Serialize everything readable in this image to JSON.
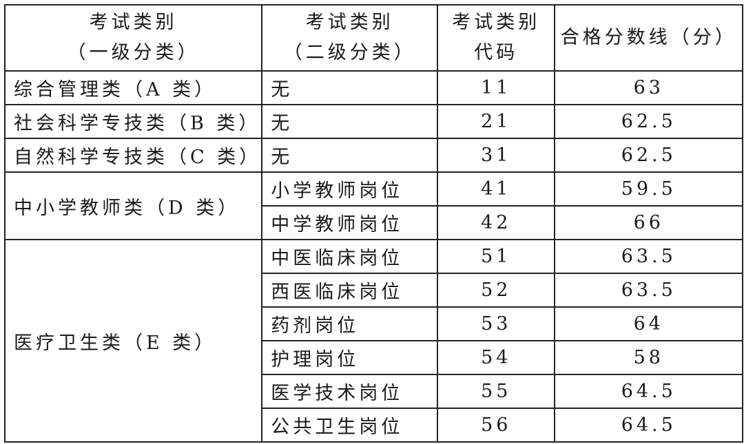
{
  "headers": [
    {
      "line1": "考试类别",
      "line2": "（一级分类）"
    },
    {
      "line1": "考试类别",
      "line2": "（二级分类）"
    },
    {
      "line1": "考试类别",
      "line2": "代码"
    },
    {
      "line1": "合格分数线（分）",
      "line2": ""
    }
  ],
  "rows": [
    {
      "cat1": "综合管理类（A 类）",
      "cat2": "无",
      "code": "11",
      "score": "63"
    },
    {
      "cat1": "社会科学专技类（B 类）",
      "cat2": "无",
      "code": "21",
      "score": "62.5"
    },
    {
      "cat1": "自然科学专技类（C 类）",
      "cat2": "无",
      "code": "31",
      "score": "62.5"
    },
    {
      "cat1": "中小学教师类（D 类）",
      "cat2": "小学教师岗位",
      "code": "41",
      "score": "59.5"
    },
    {
      "cat1": "",
      "cat2": "中学教师岗位",
      "code": "42",
      "score": "66"
    },
    {
      "cat1": "医疗卫生类（E 类）",
      "cat2": "中医临床岗位",
      "code": "51",
      "score": "63.5"
    },
    {
      "cat1": "",
      "cat2": "西医临床岗位",
      "code": "52",
      "score": "63.5"
    },
    {
      "cat1": "",
      "cat2": "药剂岗位",
      "code": "53",
      "score": "64"
    },
    {
      "cat1": "",
      "cat2": "护理岗位",
      "code": "54",
      "score": "58"
    },
    {
      "cat1": "",
      "cat2": "医学技术岗位",
      "code": "55",
      "score": "64.5"
    },
    {
      "cat1": "",
      "cat2": "公共卫生岗位",
      "code": "56",
      "score": "64.5"
    }
  ]
}
